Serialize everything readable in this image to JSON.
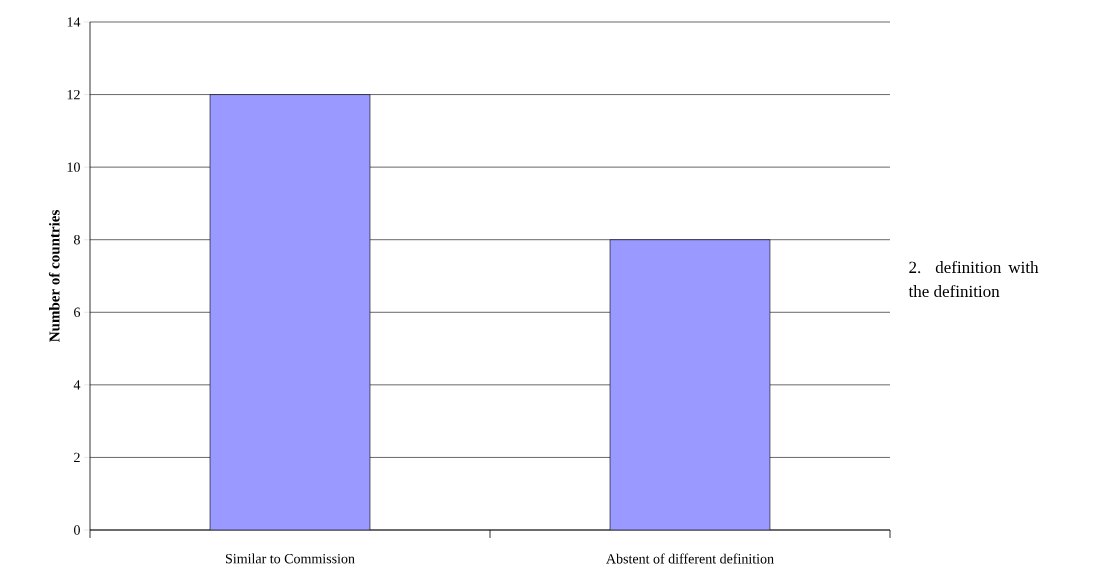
{
  "chart_data": {
    "type": "bar",
    "ylabel": "Number of countries",
    "categories": [
      "Similar to Commission",
      "Abstent of different definition"
    ],
    "values": [
      12,
      8
    ],
    "color": "#9999ff",
    "ylim": [
      0,
      14
    ],
    "yticks": [
      0,
      2,
      4,
      6,
      8,
      10,
      12,
      14
    ],
    "grid": "y",
    "annotations": [
      "2. definition with the definition"
    ]
  }
}
